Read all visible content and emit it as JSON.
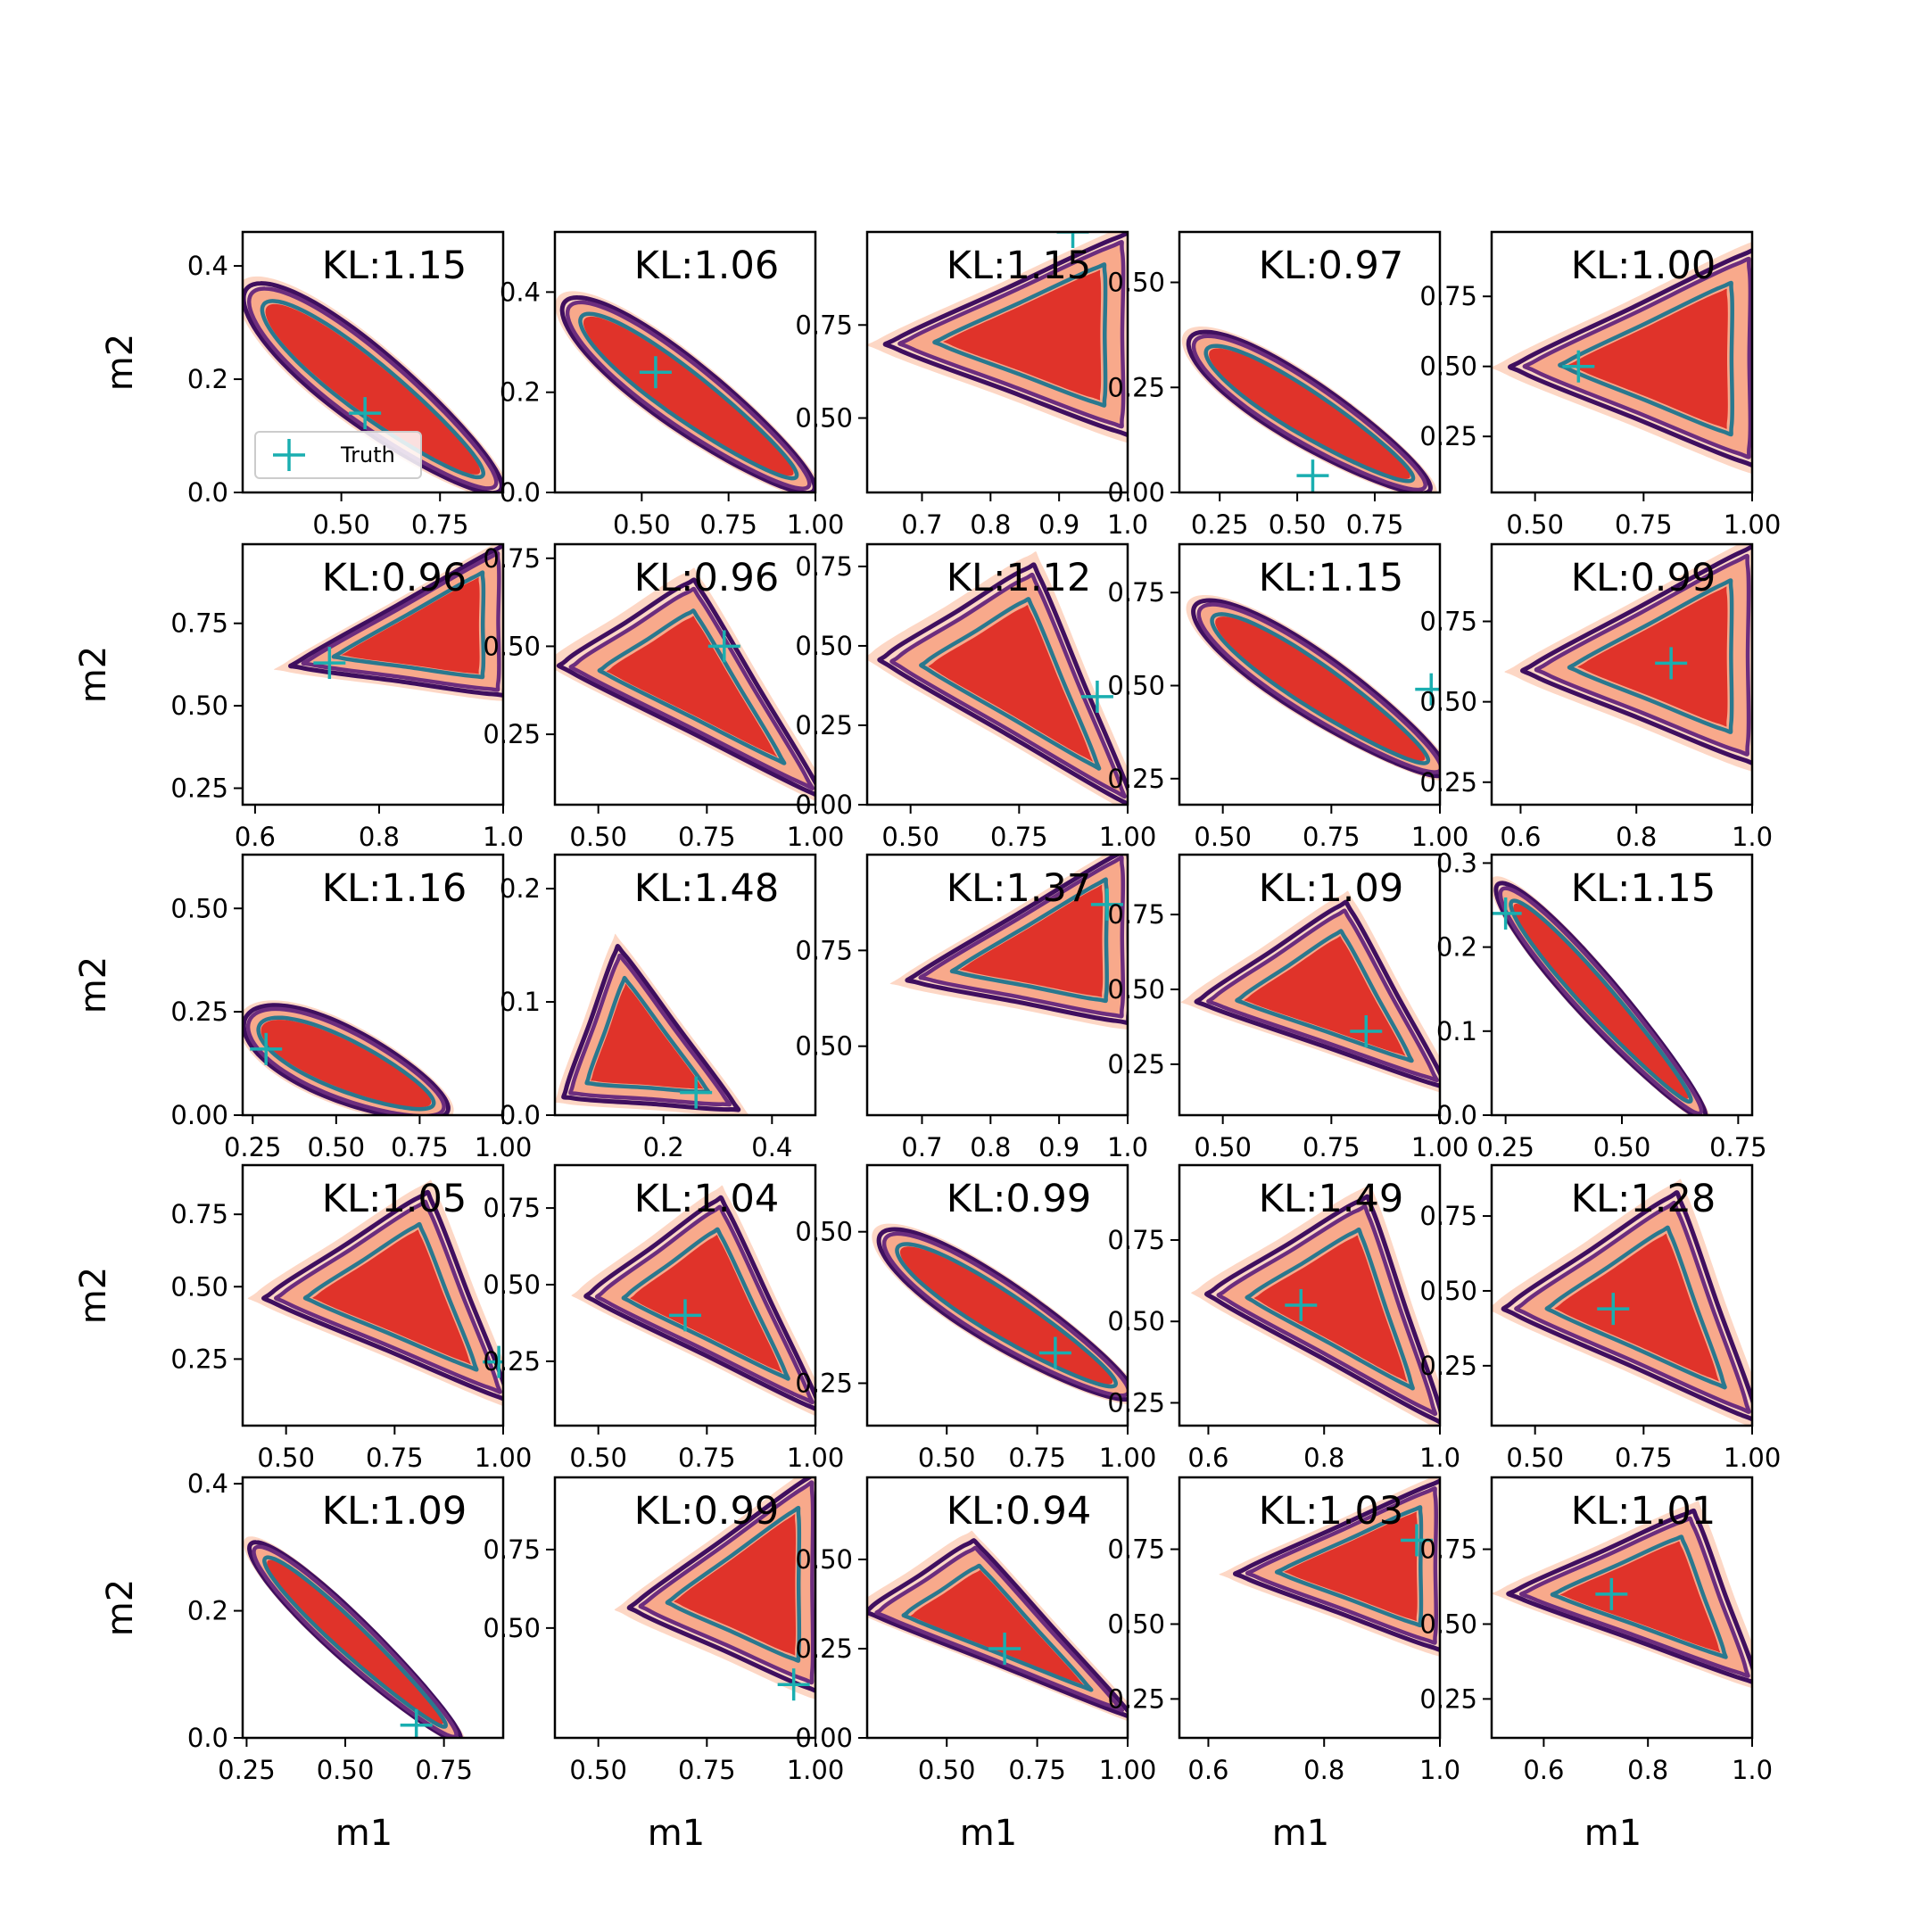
{
  "chart_data": {
    "type": "contour-grid",
    "rows": 5,
    "cols": 5,
    "xlabel": "m1",
    "ylabel": "m2",
    "legend": {
      "label": "Truth",
      "marker": "+",
      "location": "lower-left of first panel"
    },
    "colors": {
      "fill_outer": "#fdd7c5",
      "fill_mid": "#f8a98b",
      "fill_inner": "#e0332a",
      "contour_outer": "#3f0f5f",
      "contour_mid": "#6c2d7e",
      "contour_inner": "#2a788e",
      "truth": "#1aaeb0"
    },
    "panels": [
      {
        "kl": "KL:1.15",
        "xlim": [
          0.25,
          0.91
        ],
        "ylim": [
          0,
          0.46
        ],
        "xticks": [
          "0.50",
          "0.75"
        ],
        "yticks": [
          "0.0",
          "0.2",
          "0.4"
        ],
        "truth": [
          0.56,
          0.14
        ],
        "shape": {
          "type": "band",
          "x0": 0.28,
          "x1": 0.88,
          "y0": 0.34,
          "y1": 0.02,
          "w": 0.13
        }
      },
      {
        "kl": "KL:1.06",
        "xlim": [
          0.25,
          1.0
        ],
        "ylim": [
          0,
          0.52
        ],
        "xticks": [
          "0.50",
          "0.75",
          "1.00"
        ],
        "yticks": [
          "0.0",
          "0.2",
          "0.4"
        ],
        "truth": [
          0.54,
          0.24
        ],
        "shape": {
          "type": "band",
          "x0": 0.3,
          "x1": 0.97,
          "y0": 0.36,
          "y1": 0.02,
          "w": 0.13
        }
      },
      {
        "kl": "KL:1.15",
        "xlim": [
          0.62,
          1.0
        ],
        "ylim": [
          0.3,
          1.0
        ],
        "xticks": [
          "0.7",
          "0.8",
          "0.9",
          "1.0"
        ],
        "yticks": [
          "0.50",
          "0.75"
        ],
        "truth": [
          0.92,
          1.0
        ],
        "shape": {
          "type": "wedge",
          "apex": [
            0.67,
            0.7
          ],
          "tr": [
            0.99,
            0.97
          ],
          "br": [
            0.99,
            0.48
          ]
        }
      },
      {
        "kl": "KL:0.97",
        "xlim": [
          0.12,
          0.96
        ],
        "ylim": [
          0,
          0.62
        ],
        "xticks": [
          "0.25",
          "0.50",
          "0.75"
        ],
        "yticks": [
          "0.00",
          "0.25",
          "0.50"
        ],
        "truth": [
          0.55,
          0.04
        ],
        "shape": {
          "type": "band",
          "x0": 0.18,
          "x1": 0.9,
          "y0": 0.35,
          "y1": 0.02,
          "w": 0.14
        }
      },
      {
        "kl": "KL:1.00",
        "xlim": [
          0.4,
          1.0
        ],
        "ylim": [
          0.05,
          0.98
        ],
        "xticks": [
          "0.50",
          "0.75",
          "1.00"
        ],
        "yticks": [
          "0.25",
          "0.50",
          "0.75"
        ],
        "truth": [
          0.6,
          0.5
        ],
        "shape": {
          "type": "tri",
          "apex": [
            0.48,
            0.5
          ],
          "tr": [
            0.99,
            0.88
          ],
          "br": [
            0.99,
            0.18
          ]
        }
      },
      {
        "kl": "KL:0.96",
        "xlim": [
          0.58,
          1.0
        ],
        "ylim": [
          0.2,
          0.99
        ],
        "xticks": [
          "0.6",
          "0.8",
          "1.0"
        ],
        "yticks": [
          "0.25",
          "0.50",
          "0.75"
        ],
        "truth": [
          0.72,
          0.63
        ],
        "shape": {
          "type": "wedge",
          "apex": [
            0.68,
            0.63
          ],
          "tr": [
            0.99,
            0.96
          ],
          "br": [
            0.99,
            0.55
          ]
        }
      },
      {
        "kl": "KL:0.96",
        "xlim": [
          0.4,
          1.0
        ],
        "ylim": [
          0.05,
          0.79
        ],
        "xticks": [
          "0.50",
          "0.75",
          "1.00"
        ],
        "yticks": [
          "0.25",
          "0.50",
          "0.75"
        ],
        "truth": [
          0.79,
          0.5
        ],
        "shape": {
          "type": "tri",
          "apex": [
            0.44,
            0.44
          ],
          "tr": [
            0.72,
            0.66
          ],
          "br": [
            0.99,
            0.1
          ]
        }
      },
      {
        "kl": "KL:1.12",
        "xlim": [
          0.4,
          1.0
        ],
        "ylim": [
          0,
          0.82
        ],
        "xticks": [
          "0.50",
          "0.75",
          "1.00"
        ],
        "yticks": [
          "0.00",
          "0.25",
          "0.50",
          "0.75"
        ],
        "truth": [
          0.93,
          0.34
        ],
        "shape": {
          "type": "tri",
          "apex": [
            0.46,
            0.45
          ],
          "tr": [
            0.78,
            0.72
          ],
          "br": [
            0.99,
            0.03
          ]
        }
      },
      {
        "kl": "KL:1.15",
        "xlim": [
          0.4,
          1.0
        ],
        "ylim": [
          0.18,
          0.88
        ],
        "xticks": [
          "0.50",
          "0.75",
          "1.00"
        ],
        "yticks": [
          "0.25",
          "0.50",
          "0.75"
        ],
        "truth": [
          0.98,
          0.49
        ],
        "shape": {
          "type": "band",
          "x0": 0.46,
          "x1": 0.99,
          "y0": 0.7,
          "y1": 0.28,
          "w": 0.14
        }
      },
      {
        "kl": "KL:0.99",
        "xlim": [
          0.55,
          1.0
        ],
        "ylim": [
          0.18,
          0.99
        ],
        "xticks": [
          "0.6",
          "0.8",
          "1.0"
        ],
        "yticks": [
          "0.25",
          "0.50",
          "0.75"
        ],
        "truth": [
          0.86,
          0.62
        ],
        "shape": {
          "type": "tri",
          "apex": [
            0.63,
            0.6
          ],
          "tr": [
            0.99,
            0.95
          ],
          "br": [
            0.99,
            0.34
          ]
        }
      },
      {
        "kl": "KL:1.16",
        "xlim": [
          0.22,
          1.0
        ],
        "ylim": [
          0,
          0.63
        ],
        "xticks": [
          "0.25",
          "0.50",
          "0.75",
          "1.00"
        ],
        "yticks": [
          "0.00",
          "0.25",
          "0.50"
        ],
        "truth": [
          0.29,
          0.16
        ],
        "shape": {
          "type": "band",
          "x0": 0.25,
          "x1": 0.81,
          "y0": 0.22,
          "y1": 0.02,
          "w": 0.16
        }
      },
      {
        "kl": "KL:1.48",
        "xlim": [
          0.0,
          0.48
        ],
        "ylim": [
          0,
          0.23
        ],
        "xticks": [
          "0.2",
          "0.4"
        ],
        "yticks": [
          "0.0",
          "0.1",
          "0.2"
        ],
        "truth": [
          0.26,
          0.02
        ],
        "shape": {
          "type": "tri",
          "apex": [
            0.12,
            0.14
          ],
          "tr": [
            0.32,
            0.01
          ],
          "br": [
            0.03,
            0.02
          ]
        }
      },
      {
        "kl": "KL:1.37",
        "xlim": [
          0.62,
          1.0
        ],
        "ylim": [
          0.32,
          1.0
        ],
        "xticks": [
          "0.7",
          "0.8",
          "0.9",
          "1.0"
        ],
        "yticks": [
          "0.50",
          "0.75"
        ],
        "truth": [
          0.97,
          0.87
        ],
        "shape": {
          "type": "wedge",
          "apex": [
            0.7,
            0.68
          ],
          "tr": [
            0.99,
            0.99
          ],
          "br": [
            0.99,
            0.58
          ]
        }
      },
      {
        "kl": "KL:1.09",
        "xlim": [
          0.4,
          1.0
        ],
        "ylim": [
          0.08,
          0.95
        ],
        "xticks": [
          "0.50",
          "0.75",
          "1.00"
        ],
        "yticks": [
          "0.25",
          "0.50",
          "0.75"
        ],
        "truth": [
          0.83,
          0.36
        ],
        "shape": {
          "type": "tri",
          "apex": [
            0.47,
            0.46
          ],
          "tr": [
            0.78,
            0.76
          ],
          "br": [
            0.99,
            0.2
          ]
        }
      },
      {
        "kl": "KL:1.15",
        "xlim": [
          0.22,
          0.78
        ],
        "ylim": [
          0,
          0.31
        ],
        "xticks": [
          "0.25",
          "0.50",
          "0.75"
        ],
        "yticks": [
          "0.0",
          "0.1",
          "0.2",
          "0.3"
        ],
        "truth": [
          0.25,
          0.24
        ],
        "shape": {
          "type": "band",
          "x0": 0.25,
          "x1": 0.66,
          "y0": 0.26,
          "y1": 0.01,
          "w": 0.06
        }
      },
      {
        "kl": "KL:1.05",
        "xlim": [
          0.4,
          1.0
        ],
        "ylim": [
          0.02,
          0.92
        ],
        "xticks": [
          "0.50",
          "0.75",
          "1.00"
        ],
        "yticks": [
          "0.25",
          "0.50",
          "0.75"
        ],
        "truth": [
          0.99,
          0.24
        ],
        "shape": {
          "type": "tri",
          "apex": [
            0.48,
            0.46
          ],
          "tr": [
            0.82,
            0.79
          ],
          "br": [
            0.99,
            0.14
          ]
        }
      },
      {
        "kl": "KL:1.04",
        "xlim": [
          0.4,
          1.0
        ],
        "ylim": [
          0.04,
          0.89
        ],
        "xticks": [
          "0.50",
          "0.75",
          "1.00"
        ],
        "yticks": [
          "0.25",
          "0.50",
          "0.75"
        ],
        "truth": [
          0.7,
          0.4
        ],
        "shape": {
          "type": "tri",
          "apex": [
            0.5,
            0.46
          ],
          "tr": [
            0.78,
            0.75
          ],
          "br": [
            0.99,
            0.12
          ]
        }
      },
      {
        "kl": "KL:0.99",
        "xlim": [
          0.28,
          1.0
        ],
        "ylim": [
          0.18,
          0.61
        ],
        "xticks": [
          "0.50",
          "0.75",
          "1.00"
        ],
        "yticks": [
          "0.25",
          "0.50"
        ],
        "truth": [
          0.8,
          0.3
        ],
        "shape": {
          "type": "band",
          "x0": 0.34,
          "x1": 0.99,
          "y0": 0.48,
          "y1": 0.24,
          "w": 0.1
        }
      },
      {
        "kl": "KL:1.49",
        "xlim": [
          0.55,
          1.0
        ],
        "ylim": [
          0.18,
          0.98
        ],
        "xticks": [
          "0.6",
          "0.8",
          "1.0"
        ],
        "yticks": [
          "0.25",
          "0.50",
          "0.75"
        ],
        "truth": [
          0.76,
          0.55
        ],
        "shape": {
          "type": "tri",
          "apex": [
            0.62,
            0.58
          ],
          "tr": [
            0.87,
            0.85
          ],
          "br": [
            0.99,
            0.22
          ]
        }
      },
      {
        "kl": "KL:1.28",
        "xlim": [
          0.4,
          1.0
        ],
        "ylim": [
          0.05,
          0.92
        ],
        "xticks": [
          "0.50",
          "0.75",
          "1.00"
        ],
        "yticks": [
          "0.25",
          "0.50",
          "0.75"
        ],
        "truth": [
          0.68,
          0.44
        ],
        "shape": {
          "type": "tri",
          "apex": [
            0.46,
            0.44
          ],
          "tr": [
            0.82,
            0.79
          ],
          "br": [
            0.99,
            0.1
          ]
        }
      },
      {
        "kl": "KL:1.09",
        "xlim": [
          0.24,
          0.9
        ],
        "ylim": [
          0,
          0.41
        ],
        "xticks": [
          "0.25",
          "0.50",
          "0.75"
        ],
        "yticks": [
          "0.0",
          "0.2",
          "0.4"
        ],
        "truth": [
          0.68,
          0.02
        ],
        "shape": {
          "type": "band",
          "x0": 0.28,
          "x1": 0.77,
          "y0": 0.29,
          "y1": 0.01,
          "w": 0.07
        }
      },
      {
        "kl": "KL:0.99",
        "xlim": [
          0.4,
          1.0
        ],
        "ylim": [
          0.15,
          0.98
        ],
        "xticks": [
          "0.50",
          "0.75",
          "1.00"
        ],
        "yticks": [
          "0.50",
          "0.75"
        ],
        "truth": [
          0.95,
          0.32
        ],
        "shape": {
          "type": "wedge",
          "apex": [
            0.6,
            0.57
          ],
          "tr": [
            0.99,
            0.96
          ],
          "br": [
            0.99,
            0.33
          ]
        }
      },
      {
        "kl": "KL:0.94",
        "xlim": [
          0.28,
          1.0
        ],
        "ylim": [
          0,
          0.73
        ],
        "xticks": [
          "0.50",
          "0.75",
          "1.00"
        ],
        "yticks": [
          "0.00",
          "0.25",
          "0.50"
        ],
        "truth": [
          0.66,
          0.25
        ],
        "shape": {
          "type": "tri",
          "apex": [
            0.31,
            0.35
          ],
          "tr": [
            0.58,
            0.53
          ],
          "br": [
            0.98,
            0.08
          ]
        }
      },
      {
        "kl": "KL:1.03",
        "xlim": [
          0.55,
          1.0
        ],
        "ylim": [
          0.12,
          0.99
        ],
        "xticks": [
          "0.6",
          "0.8",
          "1.0"
        ],
        "yticks": [
          "0.25",
          "0.50",
          "0.75"
        ],
        "truth": [
          0.96,
          0.78
        ],
        "shape": {
          "type": "tri",
          "apex": [
            0.67,
            0.67
          ],
          "tr": [
            0.99,
            0.95
          ],
          "br": [
            0.99,
            0.44
          ]
        }
      },
      {
        "kl": "KL:1.01",
        "xlim": [
          0.5,
          1.0
        ],
        "ylim": [
          0.12,
          0.99
        ],
        "xticks": [
          "0.6",
          "0.8",
          "1.0"
        ],
        "yticks": [
          "0.25",
          "0.50",
          "0.75"
        ],
        "truth": [
          0.73,
          0.6
        ],
        "shape": {
          "type": "tri",
          "apex": [
            0.56,
            0.6
          ],
          "tr": [
            0.88,
            0.85
          ],
          "br": [
            0.99,
            0.33
          ]
        }
      }
    ]
  }
}
